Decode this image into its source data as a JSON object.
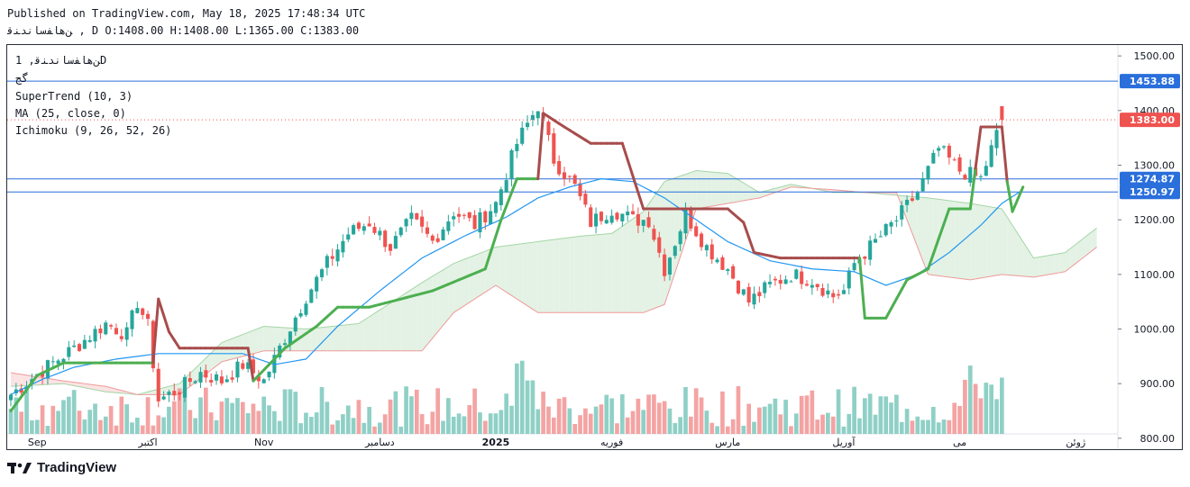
{
  "header": {
    "published": "Published on TradingView.com, May 18, 2025 17:48:34 UTC",
    "ohlc": "ﻦﻫﺎﻔﺳﺎﻧﺪﻨﻗ , D O:1408.00 H:1408.00 L:1365.00 C:1383.00"
  },
  "legend": {
    "symbol": "ﻦﻫﺎﻔﺳﺎﻧﺪﻨﻗ, 1D",
    "sub": "ﮔﺞ",
    "indicators": [
      "SuperTrend (10, 3)",
      "MA (25, close, 0)",
      "Ichimoku (9, 26, 52, 26)"
    ]
  },
  "footer": {
    "brand": "TradingView"
  },
  "colors": {
    "up": "#26a69a",
    "down": "#ef5350",
    "vol_up": "#8fd0c6",
    "vol_down": "#f4a3a3",
    "supertrend_up": "#4caf50",
    "supertrend_down": "#a84c4c",
    "ma": "#2196f3",
    "kumo_bull": "#e3f2e4",
    "kumo_bear": "#fbe3e3",
    "hline": "#2a6fdb",
    "axis_text": "#131722"
  },
  "chart_data": {
    "type": "candlestick",
    "price_axis": {
      "ticks": [
        "1500.00",
        "1400.00",
        "1300.00",
        "1200.00",
        "1100.00",
        "1000.00",
        "900.00",
        "800.00"
      ],
      "range": [
        780,
        1520
      ]
    },
    "price_labels": [
      {
        "value": 1453.88,
        "text": "1453.88",
        "color": "#2a6fdb"
      },
      {
        "value": 1383.0,
        "text": "1383.00",
        "color": "#ef5350"
      },
      {
        "value": 1274.87,
        "text": "1274.87",
        "color": "#2a6fdb"
      },
      {
        "value": 1250.97,
        "text": "1250.97",
        "color": "#2a6fdb"
      }
    ],
    "time_axis": [
      {
        "label": "Sep",
        "index": 5,
        "bold": false
      },
      {
        "label": "اکتبر",
        "index": 26,
        "bold": false
      },
      {
        "label": "Nov",
        "index": 48,
        "bold": false
      },
      {
        "label": "دسامبر",
        "index": 70,
        "bold": false
      },
      {
        "label": "2025",
        "index": 92,
        "bold": true
      },
      {
        "label": "فوریه",
        "index": 114,
        "bold": false
      },
      {
        "label": "مارس",
        "index": 136,
        "bold": false
      },
      {
        "label": "آوریل",
        "index": 158,
        "bold": false
      },
      {
        "label": "می",
        "index": 180,
        "bold": false
      },
      {
        "label": "ژوئن",
        "index": 202,
        "bold": false
      }
    ],
    "close_keyframes": [
      [
        0,
        880
      ],
      [
        6,
        925
      ],
      [
        12,
        965
      ],
      [
        18,
        1010
      ],
      [
        22,
        990
      ],
      [
        24,
        1050
      ],
      [
        26,
        1005
      ],
      [
        28,
        870
      ],
      [
        32,
        890
      ],
      [
        36,
        920
      ],
      [
        40,
        905
      ],
      [
        44,
        935
      ],
      [
        48,
        905
      ],
      [
        52,
        985
      ],
      [
        56,
        1060
      ],
      [
        60,
        1120
      ],
      [
        64,
        1175
      ],
      [
        68,
        1195
      ],
      [
        72,
        1150
      ],
      [
        76,
        1200
      ],
      [
        80,
        1160
      ],
      [
        84,
        1215
      ],
      [
        88,
        1190
      ],
      [
        92,
        1230
      ],
      [
        96,
        1340
      ],
      [
        100,
        1410
      ],
      [
        103,
        1310
      ],
      [
        107,
        1260
      ],
      [
        110,
        1195
      ],
      [
        114,
        1220
      ],
      [
        118,
        1200
      ],
      [
        121,
        1200
      ],
      [
        124,
        1110
      ],
      [
        128,
        1210
      ],
      [
        132,
        1150
      ],
      [
        136,
        1110
      ],
      [
        140,
        1050
      ],
      [
        144,
        1080
      ],
      [
        148,
        1100
      ],
      [
        152,
        1090
      ],
      [
        156,
        1060
      ],
      [
        158,
        1070
      ],
      [
        160,
        1120
      ],
      [
        164,
        1160
      ],
      [
        168,
        1200
      ],
      [
        172,
        1250
      ],
      [
        176,
        1330
      ],
      [
        180,
        1290
      ],
      [
        184,
        1275
      ],
      [
        188,
        1383
      ]
    ],
    "supertrend_keyframes": [
      [
        0,
        850
      ],
      [
        5,
        915
      ],
      [
        10,
        938
      ],
      [
        27,
        938
      ],
      [
        28,
        1055
      ],
      [
        30,
        995
      ],
      [
        32,
        965
      ],
      [
        45,
        965
      ],
      [
        46,
        905
      ],
      [
        52,
        965
      ],
      [
        58,
        1005
      ],
      [
        62,
        1040
      ],
      [
        68,
        1040
      ],
      [
        80,
        1070
      ],
      [
        90,
        1110
      ],
      [
        93,
        1200
      ],
      [
        96,
        1275
      ],
      [
        100,
        1275
      ],
      [
        101,
        1395
      ],
      [
        105,
        1370
      ],
      [
        110,
        1340
      ],
      [
        116,
        1340
      ],
      [
        120,
        1220
      ],
      [
        136,
        1220
      ],
      [
        139,
        1195
      ],
      [
        141,
        1140
      ],
      [
        146,
        1130
      ],
      [
        158,
        1130
      ],
      [
        161,
        1130
      ],
      [
        162,
        1020
      ],
      [
        166,
        1020
      ],
      [
        170,
        1090
      ],
      [
        174,
        1110
      ],
      [
        178,
        1220
      ],
      [
        182,
        1220
      ],
      [
        184,
        1370
      ],
      [
        188,
        1370
      ],
      [
        189,
        1270
      ],
      [
        190,
        1215
      ],
      [
        192,
        1260
      ]
    ],
    "supertrend_down_segments": [
      [
        27,
        46
      ],
      [
        100,
        120
      ],
      [
        120,
        161
      ],
      [
        183,
        189
      ]
    ],
    "ma_keyframes": [
      [
        0,
        880
      ],
      [
        6,
        908
      ],
      [
        12,
        930
      ],
      [
        20,
        945
      ],
      [
        28,
        955
      ],
      [
        36,
        955
      ],
      [
        44,
        955
      ],
      [
        50,
        935
      ],
      [
        56,
        945
      ],
      [
        62,
        1005
      ],
      [
        70,
        1070
      ],
      [
        78,
        1130
      ],
      [
        86,
        1170
      ],
      [
        94,
        1205
      ],
      [
        100,
        1240
      ],
      [
        106,
        1260
      ],
      [
        112,
        1275
      ],
      [
        118,
        1270
      ],
      [
        124,
        1240
      ],
      [
        130,
        1200
      ],
      [
        136,
        1160
      ],
      [
        144,
        1125
      ],
      [
        152,
        1110
      ],
      [
        160,
        1105
      ],
      [
        166,
        1080
      ],
      [
        172,
        1100
      ],
      [
        178,
        1140
      ],
      [
        184,
        1190
      ],
      [
        188,
        1230
      ],
      [
        192,
        1255
      ]
    ],
    "senkou_a_keyframes": [
      [
        0,
        895
      ],
      [
        10,
        900
      ],
      [
        18,
        885
      ],
      [
        24,
        880
      ],
      [
        32,
        900
      ],
      [
        40,
        975
      ],
      [
        48,
        1005
      ],
      [
        56,
        1000
      ],
      [
        66,
        1010
      ],
      [
        78,
        1085
      ],
      [
        84,
        1120
      ],
      [
        92,
        1150
      ],
      [
        100,
        1160
      ],
      [
        108,
        1170
      ],
      [
        114,
        1175
      ],
      [
        120,
        1215
      ],
      [
        124,
        1270
      ],
      [
        130,
        1290
      ],
      [
        136,
        1285
      ],
      [
        142,
        1250
      ],
      [
        148,
        1265
      ],
      [
        156,
        1250
      ],
      [
        162,
        1250
      ],
      [
        168,
        1245
      ],
      [
        174,
        1240
      ],
      [
        182,
        1230
      ],
      [
        188,
        1220
      ],
      [
        194,
        1130
      ],
      [
        200,
        1140
      ],
      [
        206,
        1185
      ]
    ],
    "senkou_b_keyframes": [
      [
        0,
        920
      ],
      [
        10,
        905
      ],
      [
        18,
        895
      ],
      [
        24,
        880
      ],
      [
        32,
        880
      ],
      [
        40,
        940
      ],
      [
        48,
        960
      ],
      [
        56,
        960
      ],
      [
        66,
        960
      ],
      [
        78,
        960
      ],
      [
        84,
        1030
      ],
      [
        92,
        1080
      ],
      [
        100,
        1030
      ],
      [
        108,
        1030
      ],
      [
        114,
        1030
      ],
      [
        120,
        1030
      ],
      [
        124,
        1045
      ],
      [
        130,
        1220
      ],
      [
        136,
        1230
      ],
      [
        142,
        1240
      ],
      [
        148,
        1260
      ],
      [
        156,
        1255
      ],
      [
        162,
        1250
      ],
      [
        168,
        1250
      ],
      [
        174,
        1100
      ],
      [
        182,
        1090
      ],
      [
        188,
        1100
      ],
      [
        194,
        1095
      ],
      [
        200,
        1105
      ],
      [
        206,
        1150
      ]
    ],
    "hlines": [
      1453.88,
      1274.87,
      1250.97
    ],
    "last_price_dotted": 1383.0
  }
}
